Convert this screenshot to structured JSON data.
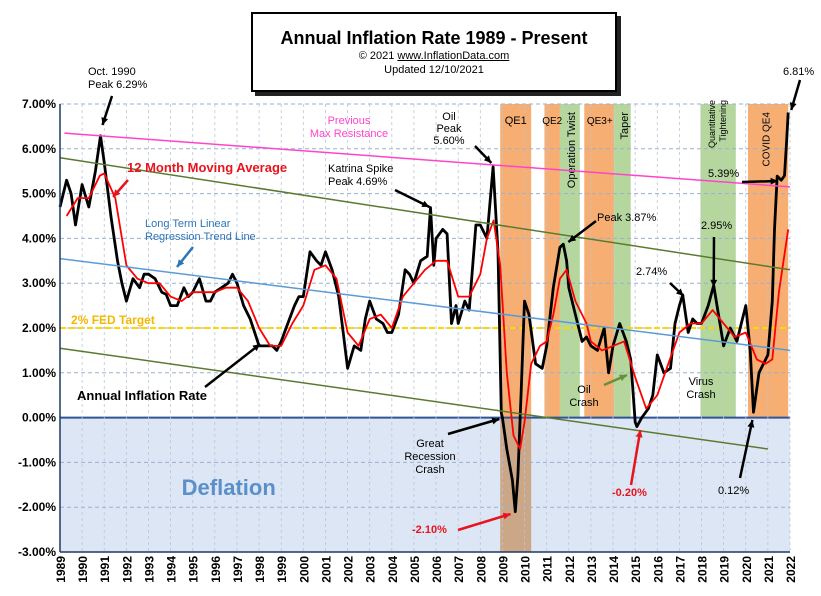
{
  "chart_data": {
    "type": "line",
    "title": "Annual  Inflation Rate 1989 - Present",
    "copyright": "© 2021",
    "source_url": "www.InflationData.com",
    "updated": "Updated  12/10/2021",
    "ylim": [
      -3.0,
      7.0
    ],
    "xlim": [
      1989,
      2022
    ],
    "y_ticks": [
      "7.00%",
      "6.00%",
      "5.00%",
      "4.00%",
      "3.00%",
      "2.00%",
      "1.00%",
      "0.00%",
      "-1.00%",
      "-2.00%",
      "-3.00%"
    ],
    "y_tick_values": [
      7,
      6,
      5,
      4,
      3,
      2,
      1,
      0,
      -1,
      -2,
      -3
    ],
    "x_ticks": [
      "1989",
      "1990",
      "1991",
      "1992",
      "1993",
      "1994",
      "1995",
      "1996",
      "1997",
      "1998",
      "1999",
      "2000",
      "2001",
      "2002",
      "2003",
      "2004",
      "2005",
      "2006",
      "2007",
      "2008",
      "2009",
      "2010",
      "2011",
      "2012",
      "2013",
      "2014",
      "2015",
      "2016",
      "2017",
      "2018",
      "2019",
      "2020",
      "2021",
      "2022"
    ],
    "series": [
      {
        "name": "Annual Inflation Rate",
        "color": "#000000",
        "points": [
          [
            1989.0,
            4.7
          ],
          [
            1989.3,
            5.3
          ],
          [
            1989.5,
            5.0
          ],
          [
            1989.7,
            4.3
          ],
          [
            1990.0,
            5.2
          ],
          [
            1990.3,
            4.7
          ],
          [
            1990.6,
            5.5
          ],
          [
            1990.83,
            6.29
          ],
          [
            1991.0,
            5.7
          ],
          [
            1991.3,
            4.5
          ],
          [
            1991.6,
            3.5
          ],
          [
            1991.8,
            3.0
          ],
          [
            1992.0,
            2.6
          ],
          [
            1992.3,
            3.1
          ],
          [
            1992.6,
            2.9
          ],
          [
            1992.8,
            3.2
          ],
          [
            1993.0,
            3.2
          ],
          [
            1993.3,
            3.1
          ],
          [
            1993.6,
            2.8
          ],
          [
            1993.8,
            2.75
          ],
          [
            1994.0,
            2.5
          ],
          [
            1994.3,
            2.5
          ],
          [
            1994.6,
            2.9
          ],
          [
            1994.8,
            2.7
          ],
          [
            1995.0,
            2.8
          ],
          [
            1995.3,
            3.1
          ],
          [
            1995.6,
            2.6
          ],
          [
            1995.8,
            2.6
          ],
          [
            1996.0,
            2.8
          ],
          [
            1996.3,
            2.9
          ],
          [
            1996.6,
            3.0
          ],
          [
            1996.8,
            3.2
          ],
          [
            1997.0,
            3.0
          ],
          [
            1997.3,
            2.5
          ],
          [
            1997.6,
            2.2
          ],
          [
            1997.8,
            1.9
          ],
          [
            1998.0,
            1.6
          ],
          [
            1998.3,
            1.6
          ],
          [
            1998.6,
            1.6
          ],
          [
            1998.8,
            1.5
          ],
          [
            1999.0,
            1.7
          ],
          [
            1999.3,
            2.1
          ],
          [
            1999.6,
            2.5
          ],
          [
            1999.8,
            2.7
          ],
          [
            2000.0,
            2.7
          ],
          [
            2000.3,
            3.7
          ],
          [
            2000.6,
            3.5
          ],
          [
            2000.8,
            3.4
          ],
          [
            2001.0,
            3.7
          ],
          [
            2001.3,
            3.3
          ],
          [
            2001.6,
            2.7
          ],
          [
            2001.8,
            1.9
          ],
          [
            2002.0,
            1.1
          ],
          [
            2002.3,
            1.6
          ],
          [
            2002.6,
            1.5
          ],
          [
            2002.8,
            2.2
          ],
          [
            2003.0,
            2.6
          ],
          [
            2003.3,
            2.2
          ],
          [
            2003.6,
            2.1
          ],
          [
            2003.8,
            1.9
          ],
          [
            2004.0,
            1.9
          ],
          [
            2004.3,
            2.3
          ],
          [
            2004.6,
            3.3
          ],
          [
            2004.8,
            3.2
          ],
          [
            2005.0,
            3.0
          ],
          [
            2005.3,
            3.5
          ],
          [
            2005.6,
            3.6
          ],
          [
            2005.75,
            4.69
          ],
          [
            2005.9,
            3.4
          ],
          [
            2006.0,
            4.0
          ],
          [
            2006.3,
            4.2
          ],
          [
            2006.5,
            4.1
          ],
          [
            2006.7,
            2.1
          ],
          [
            2006.9,
            2.5
          ],
          [
            2007.0,
            2.1
          ],
          [
            2007.3,
            2.6
          ],
          [
            2007.5,
            2.4
          ],
          [
            2007.8,
            4.3
          ],
          [
            2008.0,
            4.3
          ],
          [
            2008.3,
            4.0
          ],
          [
            2008.58,
            5.6
          ],
          [
            2008.8,
            3.7
          ],
          [
            2008.95,
            0.1
          ],
          [
            2009.0,
            0.0
          ],
          [
            2009.2,
            -0.7
          ],
          [
            2009.45,
            -1.4
          ],
          [
            2009.58,
            -2.1
          ],
          [
            2009.7,
            -1.3
          ],
          [
            2009.85,
            0.6
          ],
          [
            2010.0,
            2.6
          ],
          [
            2010.2,
            2.3
          ],
          [
            2010.5,
            1.2
          ],
          [
            2010.8,
            1.1
          ],
          [
            2011.0,
            1.6
          ],
          [
            2011.3,
            2.9
          ],
          [
            2011.6,
            3.8
          ],
          [
            2011.75,
            3.87
          ],
          [
            2011.9,
            3.5
          ],
          [
            2012.0,
            2.9
          ],
          [
            2012.3,
            2.3
          ],
          [
            2012.6,
            1.7
          ],
          [
            2012.8,
            1.8
          ],
          [
            2013.0,
            1.6
          ],
          [
            2013.3,
            1.5
          ],
          [
            2013.6,
            2.0
          ],
          [
            2013.8,
            1.0
          ],
          [
            2014.0,
            1.6
          ],
          [
            2014.3,
            2.1
          ],
          [
            2014.6,
            1.7
          ],
          [
            2014.8,
            1.3
          ],
          [
            2015.0,
            -0.1
          ],
          [
            2015.08,
            -0.2
          ],
          [
            2015.3,
            0.0
          ],
          [
            2015.6,
            0.2
          ],
          [
            2015.8,
            0.5
          ],
          [
            2016.0,
            1.4
          ],
          [
            2016.3,
            1.0
          ],
          [
            2016.6,
            1.1
          ],
          [
            2016.8,
            2.1
          ],
          [
            2017.0,
            2.5
          ],
          [
            2017.15,
            2.74
          ],
          [
            2017.4,
            1.9
          ],
          [
            2017.6,
            2.2
          ],
          [
            2017.8,
            2.1
          ],
          [
            2018.0,
            2.1
          ],
          [
            2018.3,
            2.5
          ],
          [
            2018.55,
            2.95
          ],
          [
            2018.8,
            2.2
          ],
          [
            2019.0,
            1.6
          ],
          [
            2019.3,
            2.0
          ],
          [
            2019.6,
            1.7
          ],
          [
            2019.8,
            2.1
          ],
          [
            2020.0,
            2.5
          ],
          [
            2020.2,
            1.5
          ],
          [
            2020.35,
            0.12
          ],
          [
            2020.6,
            1.0
          ],
          [
            2020.8,
            1.2
          ],
          [
            2021.0,
            1.4
          ],
          [
            2021.2,
            2.6
          ],
          [
            2021.3,
            4.2
          ],
          [
            2021.42,
            5.39
          ],
          [
            2021.6,
            5.3
          ],
          [
            2021.75,
            5.4
          ],
          [
            2021.85,
            6.2
          ],
          [
            2021.92,
            6.81
          ]
        ]
      },
      {
        "name": "12 Month Moving Average",
        "color": "#ff0000",
        "points": [
          [
            1989.3,
            4.5
          ],
          [
            1989.8,
            4.9
          ],
          [
            1990.3,
            4.9
          ],
          [
            1990.8,
            5.4
          ],
          [
            1991.0,
            5.45
          ],
          [
            1991.5,
            4.9
          ],
          [
            1992.0,
            3.4
          ],
          [
            1992.5,
            3.1
          ],
          [
            1993.0,
            3.0
          ],
          [
            1993.5,
            3.0
          ],
          [
            1994.0,
            2.7
          ],
          [
            1994.5,
            2.6
          ],
          [
            1995.0,
            2.8
          ],
          [
            1995.5,
            2.8
          ],
          [
            1996.0,
            2.8
          ],
          [
            1996.5,
            2.9
          ],
          [
            1997.0,
            2.9
          ],
          [
            1997.5,
            2.6
          ],
          [
            1998.0,
            2.0
          ],
          [
            1998.5,
            1.6
          ],
          [
            1999.0,
            1.6
          ],
          [
            1999.5,
            2.1
          ],
          [
            2000.0,
            2.5
          ],
          [
            2000.5,
            3.3
          ],
          [
            2001.0,
            3.4
          ],
          [
            2001.5,
            3.1
          ],
          [
            2002.0,
            1.9
          ],
          [
            2002.5,
            1.6
          ],
          [
            2003.0,
            2.2
          ],
          [
            2003.5,
            2.3
          ],
          [
            2004.0,
            2.0
          ],
          [
            2004.5,
            2.7
          ],
          [
            2005.0,
            3.0
          ],
          [
            2005.5,
            3.3
          ],
          [
            2006.0,
            3.5
          ],
          [
            2006.5,
            3.5
          ],
          [
            2007.0,
            2.7
          ],
          [
            2007.5,
            2.7
          ],
          [
            2008.0,
            3.2
          ],
          [
            2008.3,
            4.0
          ],
          [
            2008.6,
            4.4
          ],
          [
            2008.9,
            3.4
          ],
          [
            2009.2,
            1.0
          ],
          [
            2009.5,
            -0.4
          ],
          [
            2009.8,
            -0.7
          ],
          [
            2010.0,
            -0.1
          ],
          [
            2010.3,
            1.2
          ],
          [
            2010.7,
            1.6
          ],
          [
            2011.0,
            1.7
          ],
          [
            2011.3,
            2.3
          ],
          [
            2011.6,
            3.1
          ],
          [
            2011.9,
            3.3
          ],
          [
            2012.3,
            2.6
          ],
          [
            2012.8,
            2.1
          ],
          [
            2013.0,
            1.7
          ],
          [
            2013.5,
            1.5
          ],
          [
            2014.0,
            1.6
          ],
          [
            2014.5,
            1.7
          ],
          [
            2015.0,
            0.9
          ],
          [
            2015.5,
            0.2
          ],
          [
            2016.0,
            0.5
          ],
          [
            2016.5,
            1.2
          ],
          [
            2017.0,
            1.9
          ],
          [
            2017.5,
            2.1
          ],
          [
            2018.0,
            2.1
          ],
          [
            2018.5,
            2.4
          ],
          [
            2019.0,
            2.1
          ],
          [
            2019.5,
            1.8
          ],
          [
            2020.0,
            1.9
          ],
          [
            2020.5,
            1.3
          ],
          [
            2020.9,
            1.2
          ],
          [
            2021.2,
            1.3
          ],
          [
            2021.5,
            2.8
          ],
          [
            2021.92,
            4.2
          ]
        ]
      },
      {
        "name": "Long Term Linear Regression Trend Line",
        "color": "#5b9bd5",
        "points": [
          [
            1989.0,
            3.55
          ],
          [
            2022.0,
            1.5
          ]
        ]
      },
      {
        "name": "Previous Max Resistance",
        "color": "#ff44cc",
        "points": [
          [
            1989.2,
            6.35
          ],
          [
            2022.0,
            5.15
          ]
        ]
      },
      {
        "name": "Upper Channel",
        "color": "#5a7a2e",
        "points": [
          [
            1989.0,
            5.8
          ],
          [
            2022.0,
            3.3
          ]
        ]
      },
      {
        "name": "Lower Channel",
        "color": "#5a7a2e",
        "points": [
          [
            1989.0,
            1.55
          ],
          [
            2021.0,
            -0.7
          ]
        ]
      }
    ],
    "shaded_bands": [
      {
        "label": "QE1",
        "start": 2008.9,
        "end": 2010.3,
        "color": "#f5a05a"
      },
      {
        "label": "QE2",
        "start": 2010.9,
        "end": 2011.6,
        "color": "#f5a05a"
      },
      {
        "label": "Operation Twist",
        "start": 2011.6,
        "end": 2012.5,
        "color": "#a8d08d"
      },
      {
        "label": "QE3+",
        "start": 2012.7,
        "end": 2014.05,
        "color": "#f5a05a"
      },
      {
        "label": "Taper",
        "start": 2014.05,
        "end": 2014.8,
        "color": "#a8d08d"
      },
      {
        "label": "Quantitative Tightening",
        "start": 2017.95,
        "end": 2019.55,
        "color": "#a8d08d"
      },
      {
        "label": "COVID QE4",
        "start": 2020.1,
        "end": 2021.92,
        "color": "#f5a05a"
      }
    ],
    "fed_target": {
      "label": "2% FED Target",
      "value": 2.0,
      "color": "#ffd700"
    },
    "deflation_label": "Deflation",
    "annotations": [
      {
        "id": "oct1990",
        "lines": [
          "Oct. 1990",
          "Peak 6.29%"
        ],
        "color": "#000000",
        "bold": false
      },
      {
        "id": "moving-avg",
        "lines": [
          "12 Month Moving Average"
        ],
        "color": "#e8141c",
        "bold": true
      },
      {
        "id": "max-resistance",
        "lines": [
          "Previous",
          "Max Resistance"
        ],
        "color": "#ff44cc",
        "bold": false
      },
      {
        "id": "oil-peak",
        "lines": [
          "Oil",
          "Peak",
          "5.60%"
        ],
        "color": "#000000",
        "bold": false
      },
      {
        "id": "katrina",
        "lines": [
          "Katrina Spike",
          "Peak 4.69%"
        ],
        "color": "#000000",
        "bold": false
      },
      {
        "id": "trend-line",
        "lines": [
          "Long Term Linear",
          "Regression Trend Line"
        ],
        "color": "#2e75b6",
        "bold": false
      },
      {
        "id": "annual-rate",
        "lines": [
          "Annual Inflation Rate"
        ],
        "color": "#000000",
        "bold": true
      },
      {
        "id": "great-recession",
        "lines": [
          "Great",
          "Recession",
          "Crash"
        ],
        "color": "#000000",
        "bold": false
      },
      {
        "id": "low-2010",
        "lines": [
          "-2.10%"
        ],
        "color": "#e8141c",
        "bold": true
      },
      {
        "id": "peak-2011",
        "lines": [
          "Peak 3.87%"
        ],
        "color": "#000000",
        "bold": false
      },
      {
        "id": "oil-crash",
        "lines": [
          "Oil",
          "Crash"
        ],
        "color": "#000000",
        "bold": false
      },
      {
        "id": "low-2015",
        "lines": [
          "-0.20%"
        ],
        "color": "#e8141c",
        "bold": true
      },
      {
        "id": "peak-2017",
        "lines": [
          "2.74%"
        ],
        "color": "#000000",
        "bold": false
      },
      {
        "id": "peak-2018",
        "lines": [
          "2.95%"
        ],
        "color": "#000000",
        "bold": false
      },
      {
        "id": "virus-crash",
        "lines": [
          "Virus",
          "Crash"
        ],
        "color": "#000000",
        "bold": false
      },
      {
        "id": "low-2020",
        "lines": [
          "0.12%"
        ],
        "color": "#000000",
        "bold": false
      },
      {
        "id": "val-2021",
        "lines": [
          "5.39%"
        ],
        "color": "#000000",
        "bold": false
      },
      {
        "id": "peak-2021",
        "lines": [
          "6.81%"
        ],
        "color": "#000000",
        "bold": false
      }
    ]
  }
}
